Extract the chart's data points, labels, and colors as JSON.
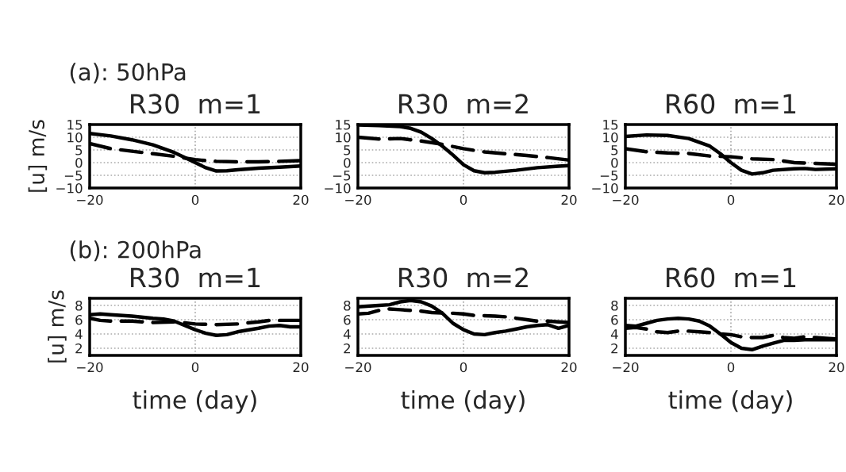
{
  "chart_data": [
    {
      "type": "line",
      "subtitle": "(a): 50hPa",
      "title": "R30  m=1",
      "ylabel": "[u] m/s",
      "xlim": [
        -20,
        20
      ],
      "ylim": [
        -10,
        15
      ],
      "xticks": [
        -20,
        0,
        20
      ],
      "yticks": [
        -10,
        -5,
        0,
        5,
        10,
        15
      ],
      "grid": true,
      "series": [
        {
          "color": "#000000",
          "line_style": "solid",
          "x": [
            -20,
            -16,
            -12,
            -8,
            -4,
            -2,
            0,
            2,
            4,
            6,
            8,
            12,
            16,
            20
          ],
          "values": [
            11.5,
            10.5,
            9,
            7,
            4,
            2,
            0,
            -2,
            -3.3,
            -3.2,
            -2.8,
            -2.2,
            -1.8,
            -1.3
          ]
        },
        {
          "color": "#000000",
          "line_style": "dashed",
          "x": [
            -20,
            -16,
            -12,
            -8,
            -4,
            -2,
            0,
            2,
            4,
            8,
            12,
            16,
            20
          ],
          "values": [
            7.5,
            5.5,
            4.5,
            3.5,
            2.5,
            1.8,
            1.2,
            0.8,
            0.5,
            0.3,
            0.3,
            0.5,
            0.8
          ]
        }
      ]
    },
    {
      "type": "line",
      "title": "R30  m=2",
      "xlim": [
        -20,
        20
      ],
      "ylim": [
        -10,
        15
      ],
      "xticks": [
        -20,
        0,
        20
      ],
      "yticks": [
        -10,
        -5,
        0,
        5,
        10,
        15
      ],
      "grid": true,
      "series": [
        {
          "color": "#000000",
          "line_style": "solid",
          "x": [
            -20,
            -16,
            -12,
            -10,
            -8,
            -6,
            -4,
            -2,
            0,
            2,
            4,
            6,
            10,
            14,
            18,
            20
          ],
          "values": [
            14.8,
            14.6,
            14.2,
            13.5,
            12,
            9.5,
            6.5,
            3,
            -0.8,
            -3.2,
            -4,
            -3.8,
            -3,
            -2,
            -1.4,
            -1.2
          ]
        },
        {
          "color": "#000000",
          "line_style": "dashed",
          "x": [
            -20,
            -16,
            -12,
            -8,
            -4,
            0,
            4,
            8,
            12,
            16,
            20
          ],
          "values": [
            10,
            9.3,
            9.5,
            8.5,
            7.2,
            5.5,
            4.2,
            3.5,
            2.8,
            2,
            1
          ]
        }
      ]
    },
    {
      "type": "line",
      "title": "R60  m=1",
      "xlim": [
        -20,
        20
      ],
      "ylim": [
        -10,
        15
      ],
      "xticks": [
        -20,
        0,
        20
      ],
      "yticks": [
        -10,
        -5,
        0,
        5,
        10,
        15
      ],
      "grid": true,
      "series": [
        {
          "color": "#000000",
          "line_style": "solid",
          "x": [
            -20,
            -16,
            -12,
            -8,
            -4,
            -2,
            0,
            2,
            4,
            6,
            8,
            12,
            14,
            16,
            20
          ],
          "values": [
            10.3,
            10.9,
            10.7,
            9.5,
            6.5,
            3.5,
            0,
            -3,
            -4.5,
            -4,
            -3,
            -2.4,
            -2.3,
            -2.7,
            -2.4
          ]
        },
        {
          "color": "#000000",
          "line_style": "dashed",
          "x": [
            -20,
            -16,
            -12,
            -8,
            -4,
            0,
            4,
            8,
            12,
            16,
            20
          ],
          "values": [
            5.5,
            4.3,
            3.8,
            3.6,
            2.6,
            2.3,
            1.5,
            1.2,
            0,
            -0.3,
            -0.6
          ]
        }
      ]
    },
    {
      "type": "line",
      "subtitle": "(b): 200hPa",
      "title": "R30  m=1",
      "ylabel": "[u] m/s",
      "xlabel": "time (day)",
      "xlim": [
        -20,
        20
      ],
      "ylim": [
        1,
        9
      ],
      "xticks": [
        -20,
        0,
        20
      ],
      "yticks": [
        2,
        4,
        6,
        8
      ],
      "grid": true,
      "series": [
        {
          "color": "#000000",
          "line_style": "solid",
          "x": [
            -20,
            -18,
            -16,
            -12,
            -8,
            -6,
            -4,
            -2,
            0,
            2,
            4,
            6,
            8,
            12,
            14,
            16,
            18,
            20
          ],
          "values": [
            6.7,
            6.8,
            6.7,
            6.5,
            6.2,
            6.1,
            5.8,
            5.2,
            4.6,
            4.1,
            3.8,
            3.9,
            4.3,
            4.8,
            5.1,
            5.2,
            5,
            5
          ]
        },
        {
          "color": "#000000",
          "line_style": "dashed",
          "x": [
            -20,
            -18,
            -16,
            -12,
            -8,
            -4,
            0,
            4,
            8,
            12,
            14,
            20
          ],
          "values": [
            6.2,
            5.9,
            5.8,
            5.8,
            5.6,
            5.7,
            5.4,
            5.3,
            5.4,
            5.7,
            5.9,
            5.9
          ]
        }
      ]
    },
    {
      "type": "line",
      "title": "R30  m=2",
      "xlabel": "time (day)",
      "xlim": [
        -20,
        20
      ],
      "ylim": [
        1,
        9
      ],
      "xticks": [
        -20,
        0,
        20
      ],
      "yticks": [
        2,
        4,
        6,
        8
      ],
      "grid": true,
      "series": [
        {
          "color": "#000000",
          "line_style": "solid",
          "x": [
            -20,
            -16,
            -14,
            -12,
            -10,
            -8,
            -6,
            -4,
            -2,
            0,
            2,
            4,
            6,
            8,
            10,
            12,
            14,
            16,
            18,
            20
          ],
          "values": [
            7.8,
            8,
            8.1,
            8.5,
            8.7,
            8.5,
            7.9,
            6.9,
            5.5,
            4.6,
            4,
            3.9,
            4.2,
            4.4,
            4.7,
            5,
            5.2,
            5.3,
            4.8,
            5.2
          ]
        },
        {
          "color": "#000000",
          "line_style": "dashed",
          "x": [
            -20,
            -18,
            -16,
            -14,
            -12,
            -8,
            -6,
            -2,
            0,
            2,
            6,
            8,
            12,
            14,
            16,
            18,
            20
          ],
          "values": [
            6.8,
            6.9,
            7.3,
            7.5,
            7.4,
            7.2,
            7,
            6.9,
            6.8,
            6.6,
            6.5,
            6.4,
            6,
            5.8,
            5.8,
            5.7,
            5.6
          ]
        }
      ]
    },
    {
      "type": "line",
      "title": "R60  m=1",
      "xlabel": "time (day)",
      "xlim": [
        -20,
        20
      ],
      "ylim": [
        1,
        9
      ],
      "xticks": [
        -20,
        0,
        20
      ],
      "yticks": [
        2,
        4,
        6,
        8
      ],
      "grid": true,
      "series": [
        {
          "color": "#000000",
          "line_style": "solid",
          "x": [
            -20,
            -18,
            -16,
            -14,
            -12,
            -10,
            -8,
            -6,
            -4,
            -2,
            0,
            2,
            4,
            6,
            8,
            10,
            12,
            14,
            16,
            18,
            20
          ],
          "values": [
            5.2,
            5.1,
            5.5,
            5.9,
            6.1,
            6.2,
            6.1,
            5.8,
            5.1,
            4,
            2.8,
            2,
            1.8,
            2.3,
            2.7,
            3.1,
            3.1,
            3.2,
            3.2,
            3.2,
            3.2
          ]
        },
        {
          "color": "#000000",
          "line_style": "dashed",
          "x": [
            -20,
            -18,
            -16,
            -14,
            -12,
            -10,
            -8,
            -6,
            -4,
            -2,
            0,
            2,
            4,
            6,
            8,
            10,
            12,
            14,
            16,
            18,
            20
          ],
          "values": [
            4.8,
            4.9,
            4.7,
            4.3,
            4.2,
            4.4,
            4.4,
            4.3,
            4.2,
            4,
            3.9,
            3.6,
            3.5,
            3.5,
            3.8,
            3.5,
            3.4,
            3.6,
            3.5,
            3.4,
            3.3
          ]
        }
      ]
    }
  ]
}
